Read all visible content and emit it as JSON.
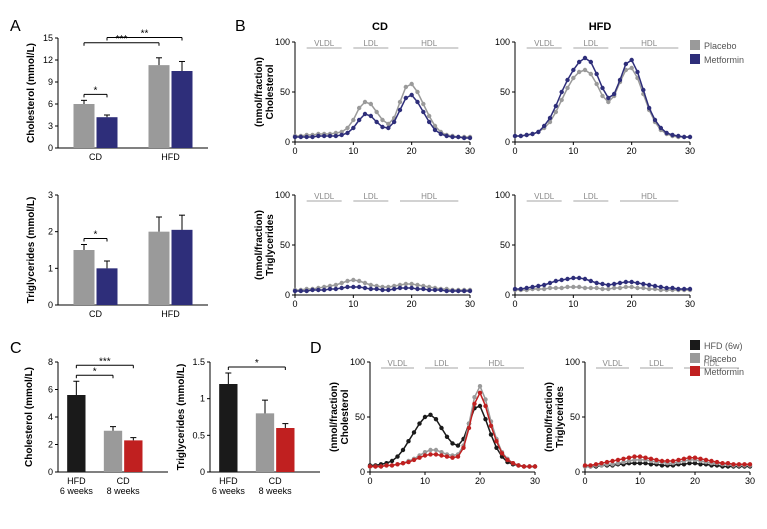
{
  "colors": {
    "placebo_gray": "#9a9a9a",
    "metformin_blue": "#2e2e7a",
    "black": "#1a1a1a",
    "gray2": "#9a9a9a",
    "red": "#c02020",
    "axis": "#000000",
    "bg": "#ffffff"
  },
  "panelA": {
    "label": "A",
    "chol": {
      "ylabel": "Cholesterol (mmol/L)",
      "ylim": [
        0,
        15
      ],
      "yticks": [
        0,
        3,
        6,
        9,
        12,
        15
      ],
      "groups": [
        "CD",
        "HFD"
      ],
      "series": [
        "Placebo",
        "Metformin"
      ],
      "values": [
        [
          6.0,
          4.2
        ],
        [
          11.3,
          10.5
        ]
      ],
      "errors": [
        [
          0.5,
          0.3
        ],
        [
          1.0,
          1.3
        ]
      ],
      "sig": [
        {
          "from": "CD-P",
          "to": "CD-M",
          "text": "*"
        },
        {
          "from": "CD-P",
          "to": "HFD-P",
          "text": "***"
        },
        {
          "from": "CD-M",
          "to": "HFD-M",
          "text": "**"
        }
      ]
    },
    "trig": {
      "ylabel": "Triglycerides (mmol/L)",
      "ylim": [
        0,
        3
      ],
      "yticks": [
        0,
        1,
        2,
        3
      ],
      "groups": [
        "CD",
        "HFD"
      ],
      "values": [
        [
          1.5,
          1.0
        ],
        [
          2.0,
          2.05
        ]
      ],
      "errors": [
        [
          0.15,
          0.2
        ],
        [
          0.4,
          0.4
        ]
      ],
      "sig": [
        {
          "from": "CD-P",
          "to": "CD-M",
          "text": "*"
        }
      ]
    }
  },
  "panelB": {
    "label": "B",
    "columns": [
      "CD",
      "HFD"
    ],
    "legend": [
      "Placebo",
      "Metformin"
    ],
    "regions": [
      {
        "label": "VLDL",
        "start": 2,
        "end": 8
      },
      {
        "label": "LDL",
        "start": 10,
        "end": 16
      },
      {
        "label": "HDL",
        "start": 18,
        "end": 28
      }
    ],
    "chol": {
      "ylabel": "Cholesterol\n(nmol/fraction)",
      "ylim": [
        0,
        100
      ],
      "yticks": [
        0,
        50,
        100
      ],
      "xlim": [
        0,
        30
      ],
      "xticks": [
        0,
        10,
        20,
        30
      ],
      "CD": {
        "Placebo": [
          6,
          6,
          7,
          7,
          8,
          8,
          8,
          9,
          10,
          14,
          22,
          34,
          40,
          38,
          30,
          22,
          18,
          24,
          40,
          55,
          58,
          50,
          38,
          26,
          16,
          10,
          7,
          6,
          5,
          5,
          5
        ],
        "Metformin": [
          5,
          5,
          5,
          5,
          6,
          6,
          6,
          6,
          7,
          9,
          14,
          22,
          28,
          26,
          20,
          15,
          14,
          20,
          32,
          44,
          47,
          40,
          30,
          20,
          12,
          8,
          6,
          5,
          5,
          4,
          4
        ]
      },
      "HFD": {
        "Placebo": [
          6,
          6,
          7,
          8,
          10,
          14,
          20,
          30,
          42,
          54,
          64,
          70,
          72,
          68,
          58,
          46,
          40,
          46,
          60,
          72,
          74,
          64,
          48,
          32,
          20,
          12,
          8,
          6,
          5,
          5,
          5
        ],
        "Metformin": [
          6,
          6,
          7,
          8,
          10,
          16,
          24,
          36,
          50,
          62,
          72,
          80,
          84,
          80,
          68,
          54,
          44,
          48,
          62,
          78,
          82,
          70,
          52,
          34,
          22,
          14,
          9,
          7,
          6,
          5,
          5
        ]
      }
    },
    "trig": {
      "ylabel": "Triglycerides\n(nmol/fraction)",
      "ylim": [
        0,
        100
      ],
      "yticks": [
        0,
        50,
        100
      ],
      "CD": {
        "Placebo": [
          5,
          5,
          6,
          6,
          7,
          8,
          9,
          10,
          12,
          14,
          15,
          14,
          12,
          10,
          9,
          8,
          8,
          9,
          10,
          11,
          11,
          10,
          9,
          8,
          7,
          6,
          6,
          5,
          5,
          5,
          5
        ],
        "Metformin": [
          4,
          4,
          4,
          5,
          5,
          5,
          6,
          6,
          7,
          8,
          8,
          8,
          7,
          6,
          6,
          5,
          5,
          6,
          7,
          7,
          7,
          6,
          6,
          5,
          5,
          5,
          4,
          4,
          4,
          4,
          4
        ]
      },
      "HFD": {
        "Placebo": [
          5,
          5,
          5,
          6,
          6,
          6,
          7,
          7,
          7,
          8,
          8,
          8,
          7,
          7,
          7,
          6,
          6,
          7,
          7,
          8,
          8,
          7,
          7,
          6,
          6,
          5,
          5,
          5,
          5,
          5,
          5
        ],
        "Metformin": [
          6,
          6,
          7,
          8,
          9,
          10,
          12,
          14,
          15,
          16,
          17,
          17,
          16,
          14,
          12,
          11,
          10,
          11,
          12,
          13,
          13,
          12,
          11,
          10,
          9,
          8,
          7,
          7,
          6,
          6,
          6
        ]
      }
    }
  },
  "panelC": {
    "label": "C",
    "chol": {
      "ylabel": "Cholesterol (mmol/L)",
      "ylim": [
        0,
        8
      ],
      "yticks": [
        0,
        2,
        4,
        6,
        8
      ],
      "xlabels": [
        "HFD\n6 weeks",
        "CD\n8 weeks"
      ],
      "bars": [
        {
          "label": "HFD (6w)",
          "value": 5.6,
          "err": 1.0,
          "color": "black"
        },
        {
          "label": "Placebo",
          "value": 3.0,
          "err": 0.3,
          "color": "gray2"
        },
        {
          "label": "Metformin",
          "value": 2.3,
          "err": 0.2,
          "color": "red"
        }
      ],
      "sig": [
        {
          "i": 0,
          "j": 1,
          "text": "*"
        },
        {
          "i": 0,
          "j": 2,
          "text": "***"
        }
      ]
    },
    "trig": {
      "ylabel": "Triglycerides (mmol/L)",
      "ylim": [
        0,
        1.5
      ],
      "yticks": [
        0,
        0.5,
        1.0,
        1.5
      ],
      "bars": [
        {
          "label": "HFD (6w)",
          "value": 1.2,
          "err": 0.15,
          "color": "black"
        },
        {
          "label": "Placebo",
          "value": 0.8,
          "err": 0.18,
          "color": "gray2"
        },
        {
          "label": "Metformin",
          "value": 0.6,
          "err": 0.06,
          "color": "red"
        }
      ],
      "sig": [
        {
          "i": 0,
          "j": 2,
          "text": "*"
        }
      ]
    }
  },
  "panelD": {
    "label": "D",
    "regions": [
      {
        "label": "VLDL",
        "start": 2,
        "end": 8
      },
      {
        "label": "LDL",
        "start": 10,
        "end": 16
      },
      {
        "label": "HDL",
        "start": 18,
        "end": 28
      }
    ],
    "chol": {
      "ylabel": "Cholesterol\n(nmol/fraction)",
      "ylim": [
        0,
        100
      ],
      "yticks": [
        0,
        50,
        100
      ],
      "xlim": [
        0,
        30
      ],
      "xticks": [
        0,
        10,
        20,
        30
      ],
      "series": {
        "HFD (6w)": [
          6,
          6,
          7,
          8,
          10,
          14,
          20,
          28,
          36,
          44,
          50,
          52,
          48,
          40,
          32,
          26,
          24,
          30,
          44,
          58,
          60,
          48,
          34,
          22,
          14,
          9,
          7,
          6,
          5,
          5,
          5
        ],
        "Placebo": [
          5,
          5,
          5,
          6,
          6,
          7,
          8,
          10,
          12,
          15,
          18,
          20,
          20,
          18,
          16,
          15,
          16,
          24,
          44,
          68,
          78,
          66,
          46,
          30,
          18,
          12,
          8,
          6,
          5,
          5,
          5
        ],
        "Metformin": [
          5,
          5,
          5,
          6,
          6,
          7,
          8,
          9,
          11,
          13,
          15,
          16,
          16,
          15,
          14,
          13,
          14,
          22,
          40,
          62,
          72,
          60,
          42,
          28,
          17,
          11,
          8,
          6,
          5,
          5,
          5
        ]
      }
    },
    "trig": {
      "ylabel": "Triglycerides\n(nmol/fraction)",
      "ylim": [
        0,
        100
      ],
      "yticks": [
        0,
        50,
        100
      ],
      "series": {
        "HFD (6w)": [
          5,
          5,
          5,
          6,
          6,
          6,
          7,
          7,
          8,
          8,
          8,
          8,
          7,
          7,
          6,
          6,
          6,
          7,
          7,
          8,
          8,
          7,
          7,
          6,
          6,
          5,
          5,
          5,
          5,
          5,
          5
        ],
        "Placebo": [
          5,
          5,
          6,
          6,
          7,
          7,
          8,
          9,
          10,
          11,
          11,
          11,
          10,
          9,
          9,
          8,
          8,
          9,
          10,
          11,
          11,
          10,
          9,
          8,
          8,
          7,
          7,
          6,
          6,
          6,
          6
        ],
        "Metformin": [
          6,
          6,
          7,
          8,
          9,
          10,
          11,
          12,
          13,
          14,
          14,
          13,
          12,
          11,
          10,
          10,
          10,
          11,
          12,
          13,
          13,
          12,
          11,
          10,
          9,
          8,
          8,
          7,
          7,
          7,
          7
        ]
      }
    },
    "legend": [
      "HFD (6w)",
      "Placebo",
      "Metformin"
    ]
  }
}
